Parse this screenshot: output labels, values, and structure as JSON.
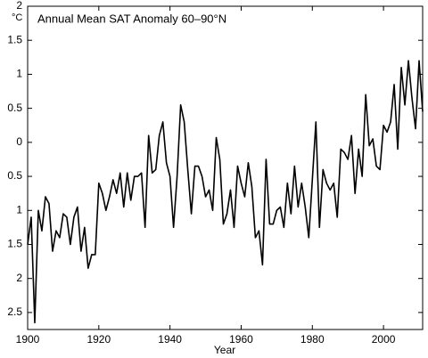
{
  "chart_data": {
    "type": "line",
    "title": "Annual Mean SAT Anomaly 60–90°N",
    "ylabel": "°C",
    "xlabel": "Year",
    "xlim": [
      1900,
      2011
    ],
    "xticks": [
      1900,
      1920,
      1940,
      1960,
      1980,
      2000
    ],
    "ylim": [
      -2.75,
      2
    ],
    "yticks": [
      {
        "value": -2.5,
        "label": "2.5"
      },
      {
        "value": -2,
        "label": "2"
      },
      {
        "value": -1.5,
        "label": "1.5"
      },
      {
        "value": -1,
        "label": "1"
      },
      {
        "value": -0.5,
        "label": "0.5"
      },
      0,
      0.5,
      1,
      1.5,
      2
    ],
    "grid": false,
    "x": [
      1900,
      1901,
      1902,
      1903,
      1904,
      1905,
      1906,
      1907,
      1908,
      1909,
      1910,
      1911,
      1912,
      1913,
      1914,
      1915,
      1916,
      1917,
      1918,
      1919,
      1920,
      1921,
      1922,
      1923,
      1924,
      1925,
      1926,
      1927,
      1928,
      1929,
      1930,
      1931,
      1932,
      1933,
      1934,
      1935,
      1936,
      1937,
      1938,
      1939,
      1940,
      1941,
      1942,
      1943,
      1944,
      1945,
      1946,
      1947,
      1948,
      1949,
      1950,
      1951,
      1952,
      1953,
      1954,
      1955,
      1956,
      1957,
      1958,
      1959,
      1960,
      1961,
      1962,
      1963,
      1964,
      1965,
      1966,
      1967,
      1968,
      1969,
      1970,
      1971,
      1972,
      1973,
      1974,
      1975,
      1976,
      1977,
      1978,
      1979,
      1980,
      1981,
      1982,
      1983,
      1984,
      1985,
      1986,
      1987,
      1988,
      1989,
      1990,
      1991,
      1992,
      1993,
      1994,
      1995,
      1996,
      1997,
      1998,
      1999,
      2000,
      2001,
      2002,
      2003,
      2004,
      2005,
      2006,
      2007,
      2008,
      2009,
      2010,
      2011
    ],
    "series": [
      {
        "color": "#000000",
        "values": [
          -1.5,
          -1.1,
          -2.65,
          -1.0,
          -1.3,
          -0.8,
          -0.9,
          -1.6,
          -1.3,
          -1.4,
          -1.05,
          -1.1,
          -1.5,
          -1.1,
          -0.95,
          -1.6,
          -1.25,
          -1.85,
          -1.65,
          -1.65,
          -0.6,
          -0.75,
          -1.0,
          -0.8,
          -0.55,
          -0.75,
          -0.45,
          -0.95,
          -0.45,
          -0.85,
          -0.5,
          -0.5,
          -0.45,
          -1.25,
          0.1,
          -0.45,
          -0.4,
          0.1,
          0.3,
          -0.3,
          -0.5,
          -1.25,
          -0.5,
          0.55,
          0.3,
          -0.4,
          -1.05,
          -0.35,
          -0.35,
          -0.5,
          -0.8,
          -0.7,
          -1.0,
          0.07,
          -0.25,
          -1.2,
          -1.05,
          -0.7,
          -1.25,
          -0.35,
          -0.6,
          -0.8,
          -0.3,
          -0.65,
          -1.4,
          -1.3,
          -1.8,
          -0.25,
          -1.2,
          -1.2,
          -1.0,
          -0.95,
          -1.25,
          -0.6,
          -1.05,
          -0.35,
          -0.95,
          -0.6,
          -0.95,
          -1.4,
          -0.55,
          0.3,
          -1.25,
          -0.4,
          -0.6,
          -0.7,
          -0.6,
          -1.1,
          -0.1,
          -0.15,
          -0.25,
          0.1,
          -0.75,
          -0.1,
          -0.5,
          0.7,
          -0.05,
          0.05,
          -0.35,
          -0.4,
          0.25,
          0.15,
          0.3,
          0.85,
          -0.1,
          1.1,
          0.55,
          1.2,
          0.65,
          0.2,
          1.2,
          0.45
        ]
      }
    ]
  }
}
